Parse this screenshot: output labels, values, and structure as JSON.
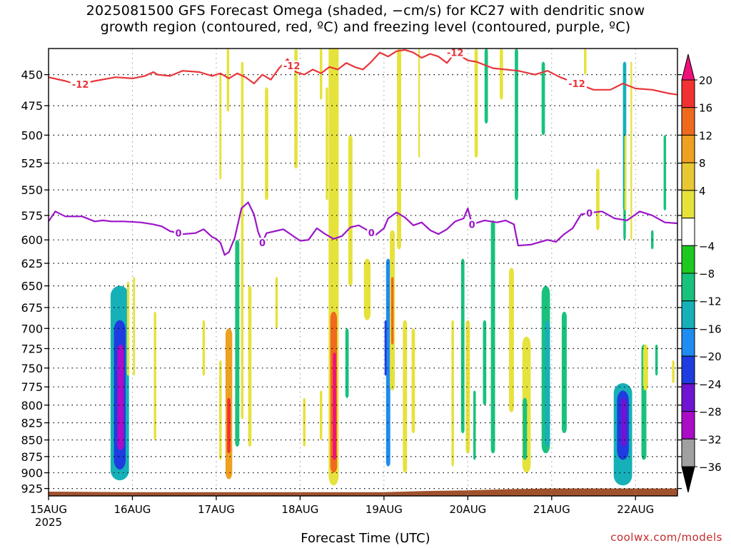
{
  "title_line1": "2025081500 GFS Forecast Omega (shaded, −cm/s) for KC27 with dendritic snow",
  "title_line2": "growth region (contoured, red, ºC) and freezing level (contoured, purple, ºC)",
  "credit": "coolwx.com/models",
  "chart_data": {
    "type": "heatmap",
    "title": "2025081500 GFS Forecast Omega (shaded, −cm/s) for KC27 with dendritic snow growth region (contoured, red, ºC) and freezing level (contoured, purple, ºC)",
    "xlabel": "Forecast Time (UTC)",
    "ylabel": "",
    "x_start_label": "15AUG",
    "x_year_label": "2025",
    "x_ticks": [
      "15AUG",
      "16AUG",
      "17AUG",
      "18AUG",
      "19AUG",
      "20AUG",
      "21AUG",
      "22AUG"
    ],
    "xlim_days": [
      0,
      7.5
    ],
    "y_ticks": [
      450,
      475,
      500,
      525,
      550,
      575,
      600,
      625,
      650,
      675,
      700,
      725,
      750,
      775,
      800,
      825,
      850,
      875,
      900,
      925
    ],
    "ylim_hpa": [
      430,
      937
    ],
    "y_scale": "log-pressure",
    "grid": true,
    "colorbar": {
      "labels": [
        "20",
        "16",
        "12",
        "8",
        "4",
        "−4",
        "−8",
        "−12",
        "−16",
        "−20",
        "−24",
        "−28",
        "−32",
        "−36"
      ],
      "bins": [
        {
          "color": "#f0107a"
        },
        {
          "color": "#f23232"
        },
        {
          "color": "#f06a1e"
        },
        {
          "color": "#eea020"
        },
        {
          "color": "#e8c832"
        },
        {
          "color": "#e6e23c"
        },
        {
          "color": "#ffffff"
        },
        {
          "color": "#1ec81e"
        },
        {
          "color": "#18c27c"
        },
        {
          "color": "#16b0b8"
        },
        {
          "color": "#1e8cf0"
        },
        {
          "color": "#1e3ce0"
        },
        {
          "color": "#6e14d2"
        },
        {
          "color": "#aa0cc8"
        },
        {
          "color": "#a0a0a0"
        },
        {
          "color": "#000000"
        }
      ]
    },
    "contours": [
      {
        "name": "-12",
        "color": "#e8353a",
        "labels": [
          {
            "x": 0.38,
            "text": "-12"
          },
          {
            "x": 2.9,
            "text": "-12"
          },
          {
            "x": 4.85,
            "text": "-12"
          },
          {
            "x": 6.3,
            "text": "-12"
          }
        ],
        "points": [
          [
            0,
            452
          ],
          [
            0.2,
            455
          ],
          [
            0.35,
            458
          ],
          [
            0.55,
            455
          ],
          [
            0.8,
            452
          ],
          [
            1.0,
            453
          ],
          [
            1.15,
            451
          ],
          [
            1.25,
            448
          ],
          [
            1.3,
            450
          ],
          [
            1.45,
            451
          ],
          [
            1.6,
            447
          ],
          [
            1.8,
            448
          ],
          [
            1.95,
            451
          ],
          [
            2.05,
            449
          ],
          [
            2.15,
            453
          ],
          [
            2.25,
            449
          ],
          [
            2.35,
            452
          ],
          [
            2.45,
            457
          ],
          [
            2.55,
            450
          ],
          [
            2.65,
            454
          ],
          [
            2.75,
            445
          ],
          [
            2.85,
            438
          ],
          [
            2.95,
            448
          ],
          [
            3.05,
            450
          ],
          [
            3.15,
            446
          ],
          [
            3.25,
            449
          ],
          [
            3.35,
            444
          ],
          [
            3.45,
            446
          ],
          [
            3.55,
            441
          ],
          [
            3.65,
            444
          ],
          [
            3.75,
            446
          ],
          [
            3.85,
            440
          ],
          [
            3.95,
            433
          ],
          [
            4.05,
            436
          ],
          [
            4.15,
            432
          ],
          [
            4.25,
            431
          ],
          [
            4.35,
            433
          ],
          [
            4.45,
            437
          ],
          [
            4.55,
            434
          ],
          [
            4.65,
            436
          ],
          [
            4.75,
            441
          ],
          [
            4.85,
            433
          ],
          [
            5.0,
            439
          ],
          [
            5.1,
            440
          ],
          [
            5.3,
            445
          ],
          [
            5.6,
            447
          ],
          [
            5.8,
            450
          ],
          [
            5.95,
            447
          ],
          [
            6.1,
            452
          ],
          [
            6.3,
            457
          ],
          [
            6.5,
            462
          ],
          [
            6.7,
            462
          ],
          [
            6.85,
            457
          ],
          [
            7.0,
            461
          ],
          [
            7.2,
            462
          ],
          [
            7.4,
            465
          ],
          [
            7.5,
            466
          ]
        ]
      },
      {
        "name": "0",
        "color": "#9c14c8",
        "labels": [
          {
            "x": 1.55,
            "text": "0"
          },
          {
            "x": 2.55,
            "text": "0"
          },
          {
            "x": 3.85,
            "text": "0"
          },
          {
            "x": 5.05,
            "text": "0"
          },
          {
            "x": 6.45,
            "text": "0"
          }
        ],
        "points": [
          [
            0,
            581
          ],
          [
            0.08,
            571
          ],
          [
            0.2,
            576
          ],
          [
            0.4,
            576
          ],
          [
            0.55,
            581
          ],
          [
            0.65,
            580
          ],
          [
            0.75,
            581
          ],
          [
            0.9,
            581
          ],
          [
            1.1,
            582
          ],
          [
            1.25,
            584
          ],
          [
            1.35,
            586
          ],
          [
            1.45,
            591
          ],
          [
            1.6,
            594
          ],
          [
            1.75,
            593
          ],
          [
            1.85,
            589
          ],
          [
            1.95,
            597
          ],
          [
            2.0,
            599
          ],
          [
            2.05,
            603
          ],
          [
            2.1,
            616
          ],
          [
            2.15,
            613
          ],
          [
            2.22,
            598
          ],
          [
            2.3,
            568
          ],
          [
            2.38,
            562
          ],
          [
            2.45,
            574
          ],
          [
            2.5,
            592
          ],
          [
            2.55,
            603
          ],
          [
            2.6,
            593
          ],
          [
            2.7,
            591
          ],
          [
            2.8,
            589
          ],
          [
            2.9,
            595
          ],
          [
            3.0,
            601
          ],
          [
            3.1,
            600
          ],
          [
            3.2,
            588
          ],
          [
            3.3,
            594
          ],
          [
            3.4,
            599
          ],
          [
            3.5,
            596
          ],
          [
            3.6,
            587
          ],
          [
            3.7,
            585
          ],
          [
            3.8,
            590
          ],
          [
            3.9,
            595
          ],
          [
            4.0,
            588
          ],
          [
            4.05,
            578
          ],
          [
            4.15,
            572
          ],
          [
            4.25,
            577
          ],
          [
            4.35,
            585
          ],
          [
            4.45,
            582
          ],
          [
            4.55,
            590
          ],
          [
            4.65,
            594
          ],
          [
            4.75,
            589
          ],
          [
            4.85,
            581
          ],
          [
            4.95,
            578
          ],
          [
            5.0,
            568
          ],
          [
            5.05,
            584
          ],
          [
            5.2,
            580
          ],
          [
            5.35,
            582
          ],
          [
            5.45,
            580
          ],
          [
            5.55,
            584
          ],
          [
            5.6,
            606
          ],
          [
            5.75,
            605
          ],
          [
            5.95,
            600
          ],
          [
            6.05,
            602
          ],
          [
            6.15,
            594
          ],
          [
            6.25,
            588
          ],
          [
            6.35,
            574
          ],
          [
            6.5,
            572
          ],
          [
            6.6,
            571
          ],
          [
            6.75,
            578
          ],
          [
            6.9,
            580
          ],
          [
            7.05,
            571
          ],
          [
            7.2,
            575
          ],
          [
            7.35,
            582
          ],
          [
            7.5,
            583
          ]
        ]
      }
    ],
    "shading": [
      {
        "x": 0.85,
        "p0": 650,
        "p1": 912,
        "w": 0.22,
        "v": -12
      },
      {
        "x": 0.85,
        "p0": 690,
        "p1": 895,
        "w": 0.14,
        "v": -20
      },
      {
        "x": 0.86,
        "p0": 720,
        "p1": 865,
        "w": 0.08,
        "v": -28
      },
      {
        "x": 0.95,
        "p0": 645,
        "p1": 760,
        "w": 0.03,
        "v": 4
      },
      {
        "x": 1.02,
        "p0": 640,
        "p1": 760,
        "w": 0.025,
        "v": 4
      },
      {
        "x": 1.27,
        "p0": 680,
        "p1": 850,
        "w": 0.03,
        "v": 4
      },
      {
        "x": 2.05,
        "p0": 740,
        "p1": 880,
        "w": 0.03,
        "v": 4
      },
      {
        "x": 1.85,
        "p0": 690,
        "p1": 760,
        "w": 0.03,
        "v": 4
      },
      {
        "x": 2.15,
        "p0": 700,
        "p1": 910,
        "w": 0.08,
        "v": 8
      },
      {
        "x": 2.15,
        "p0": 790,
        "p1": 870,
        "w": 0.04,
        "v": 16
      },
      {
        "x": 2.25,
        "p0": 600,
        "p1": 860,
        "w": 0.05,
        "v": -8
      },
      {
        "x": 2.31,
        "p0": 440,
        "p1": 820,
        "w": 0.03,
        "v": 4
      },
      {
        "x": 2.4,
        "p0": 650,
        "p1": 860,
        "w": 0.04,
        "v": 4
      },
      {
        "x": 2.6,
        "p0": 460,
        "p1": 560,
        "w": 0.04,
        "v": 4
      },
      {
        "x": 2.72,
        "p0": 640,
        "p1": 700,
        "w": 0.03,
        "v": 4
      },
      {
        "x": 2.05,
        "p0": 450,
        "p1": 540,
        "w": 0.025,
        "v": 4
      },
      {
        "x": 2.14,
        "p0": 430,
        "p1": 480,
        "w": 0.03,
        "v": 4
      },
      {
        "x": 2.95,
        "p0": 430,
        "p1": 530,
        "w": 0.04,
        "v": 4
      },
      {
        "x": 3.25,
        "p0": 430,
        "p1": 470,
        "w": 0.03,
        "v": 4
      },
      {
        "x": 3.05,
        "p0": 790,
        "p1": 860,
        "w": 0.03,
        "v": 4
      },
      {
        "x": 3.25,
        "p0": 780,
        "p1": 850,
        "w": 0.03,
        "v": 4
      },
      {
        "x": 3.32,
        "p0": 460,
        "p1": 560,
        "w": 0.03,
        "v": 4
      },
      {
        "x": 3.4,
        "p0": 410,
        "p1": 920,
        "w": 0.12,
        "v": 4
      },
      {
        "x": 3.4,
        "p0": 680,
        "p1": 900,
        "w": 0.08,
        "v": 12
      },
      {
        "x": 3.41,
        "p0": 730,
        "p1": 880,
        "w": 0.04,
        "v": 20
      },
      {
        "x": 3.56,
        "p0": 700,
        "p1": 790,
        "w": 0.04,
        "v": -8
      },
      {
        "x": 3.6,
        "p0": 500,
        "p1": 650,
        "w": 0.05,
        "v": 4
      },
      {
        "x": 3.8,
        "p0": 620,
        "p1": 690,
        "w": 0.08,
        "v": 4
      },
      {
        "x": 4.18,
        "p0": 430,
        "p1": 610,
        "w": 0.05,
        "v": 4
      },
      {
        "x": 4.05,
        "p0": 620,
        "p1": 890,
        "w": 0.05,
        "v": -16
      },
      {
        "x": 4.02,
        "p0": 690,
        "p1": 760,
        "w": 0.025,
        "v": -20
      },
      {
        "x": 4.1,
        "p0": 590,
        "p1": 780,
        "w": 0.06,
        "v": 4
      },
      {
        "x": 4.1,
        "p0": 640,
        "p1": 720,
        "w": 0.03,
        "v": 12
      },
      {
        "x": 4.25,
        "p0": 690,
        "p1": 900,
        "w": 0.05,
        "v": 4
      },
      {
        "x": 4.35,
        "p0": 700,
        "p1": 840,
        "w": 0.04,
        "v": 4
      },
      {
        "x": 4.42,
        "p0": 430,
        "p1": 520,
        "w": 0.02,
        "v": 4
      },
      {
        "x": 4.82,
        "p0": 690,
        "p1": 890,
        "w": 0.03,
        "v": 4
      },
      {
        "x": 4.94,
        "p0": 620,
        "p1": 840,
        "w": 0.04,
        "v": -8
      },
      {
        "x": 5.0,
        "p0": 690,
        "p1": 870,
        "w": 0.05,
        "v": 4
      },
      {
        "x": 5.08,
        "p0": 780,
        "p1": 880,
        "w": 0.03,
        "v": -8
      },
      {
        "x": 5.1,
        "p0": 430,
        "p1": 520,
        "w": 0.04,
        "v": 4
      },
      {
        "x": 5.2,
        "p0": 690,
        "p1": 800,
        "w": 0.04,
        "v": -8
      },
      {
        "x": 5.22,
        "p0": 430,
        "p1": 490,
        "w": 0.04,
        "v": -8
      },
      {
        "x": 5.3,
        "p0": 580,
        "p1": 870,
        "w": 0.05,
        "v": -8
      },
      {
        "x": 5.4,
        "p0": 430,
        "p1": 470,
        "w": 0.04,
        "v": 4
      },
      {
        "x": 5.52,
        "p0": 630,
        "p1": 810,
        "w": 0.06,
        "v": 4
      },
      {
        "x": 5.58,
        "p0": 430,
        "p1": 560,
        "w": 0.04,
        "v": -8
      },
      {
        "x": 5.7,
        "p0": 710,
        "p1": 900,
        "w": 0.1,
        "v": 4
      },
      {
        "x": 5.68,
        "p0": 790,
        "p1": 880,
        "w": 0.05,
        "v": -8
      },
      {
        "x": 5.9,
        "p0": 440,
        "p1": 500,
        "w": 0.04,
        "v": -8
      },
      {
        "x": 5.93,
        "p0": 650,
        "p1": 870,
        "w": 0.1,
        "v": -8
      },
      {
        "x": 5.95,
        "p0": 690,
        "p1": 860,
        "w": 0.06,
        "v": -12
      },
      {
        "x": 6.15,
        "p0": 680,
        "p1": 840,
        "w": 0.06,
        "v": -8
      },
      {
        "x": 6.4,
        "p0": 430,
        "p1": 450,
        "w": 0.03,
        "v": 4
      },
      {
        "x": 6.55,
        "p0": 530,
        "p1": 590,
        "w": 0.04,
        "v": 4
      },
      {
        "x": 6.85,
        "p0": 770,
        "p1": 920,
        "w": 0.22,
        "v": -12
      },
      {
        "x": 6.85,
        "p0": 780,
        "p1": 880,
        "w": 0.14,
        "v": -20
      },
      {
        "x": 6.86,
        "p0": 790,
        "p1": 860,
        "w": 0.07,
        "v": -24
      },
      {
        "x": 6.87,
        "p0": 440,
        "p1": 570,
        "w": 0.04,
        "v": -12
      },
      {
        "x": 6.87,
        "p0": 550,
        "p1": 600,
        "w": 0.03,
        "v": -8
      },
      {
        "x": 6.88,
        "p0": 500,
        "p1": 570,
        "w": 0.025,
        "v": 4
      },
      {
        "x": 6.95,
        "p0": 440,
        "p1": 600,
        "w": 0.02,
        "v": 4
      },
      {
        "x": 7.1,
        "p0": 720,
        "p1": 880,
        "w": 0.06,
        "v": -8
      },
      {
        "x": 7.12,
        "p0": 720,
        "p1": 780,
        "w": 0.06,
        "v": 4
      },
      {
        "x": 7.2,
        "p0": 590,
        "p1": 610,
        "w": 0.03,
        "v": -8
      },
      {
        "x": 7.25,
        "p0": 720,
        "p1": 760,
        "w": 0.03,
        "v": -8
      },
      {
        "x": 7.35,
        "p0": 500,
        "p1": 570,
        "w": 0.03,
        "v": -8
      },
      {
        "x": 7.45,
        "p0": 740,
        "p1": 770,
        "w": 0.03,
        "v": 4
      }
    ],
    "terrain": {
      "color": "#a0522d",
      "points": [
        [
          0,
          930
        ],
        [
          1.0,
          931
        ],
        [
          2.0,
          931
        ],
        [
          3.0,
          931
        ],
        [
          4.0,
          931
        ],
        [
          4.5,
          929
        ],
        [
          5.0,
          928
        ],
        [
          5.5,
          926
        ],
        [
          6.0,
          925
        ],
        [
          7.0,
          925
        ],
        [
          7.5,
          925
        ]
      ]
    }
  }
}
